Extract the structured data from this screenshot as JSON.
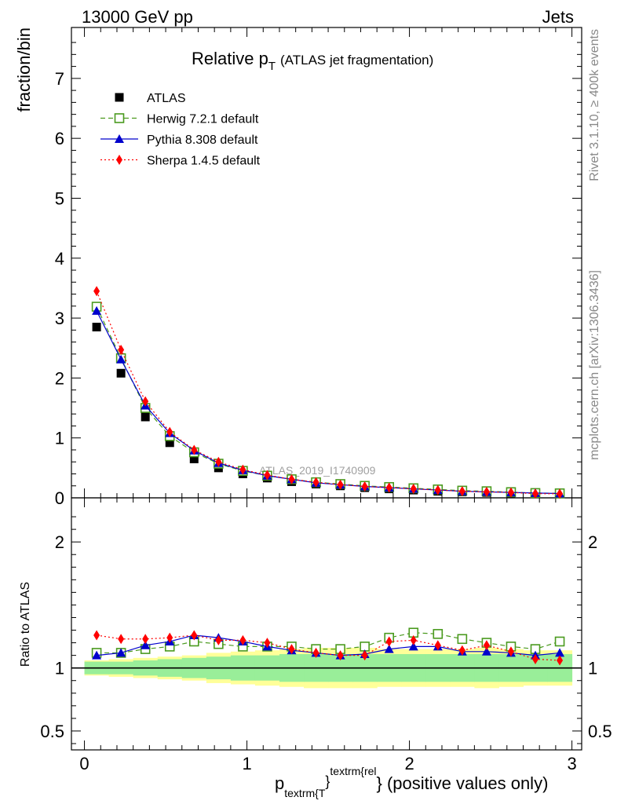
{
  "chart_data": {
    "type": "scatter",
    "header_left": "13000 GeV pp",
    "header_right": "Jets",
    "title": "Relative p",
    "title_sub": "T",
    "title_suffix": "(ATLAS jet fragmentation)",
    "ylabel_main": "fraction/bin",
    "ylabel_ratio": "Ratio to ATLAS",
    "xlabel_p": "p",
    "xlabel_sub": "textrm{T",
    "xlabel_sup": "textrm{rel",
    "xlabel_brace": "}",
    "xlabel_rest": "} (positive values only)",
    "watermark": "ATLAS_2019_I1740909",
    "side_rivet": "Rivet 3.1.10, ≥ 400k events",
    "side_mcplots": "mcplots.cern.ch [arXiv:1306.3436]",
    "xlim": [
      -0.08,
      3.06
    ],
    "ylim_main": [
      0,
      7.85
    ],
    "ylim_ratio": [
      0.35,
      2.35
    ],
    "x_ticks": [
      {
        "v": 0,
        "label": "0"
      },
      {
        "v": 1,
        "label": "1"
      },
      {
        "v": 2,
        "label": "2"
      },
      {
        "v": 3,
        "label": "3"
      }
    ],
    "y_ticks_main": [
      {
        "v": 0,
        "label": "0"
      },
      {
        "v": 1,
        "label": "1"
      },
      {
        "v": 2,
        "label": "2"
      },
      {
        "v": 3,
        "label": "3"
      },
      {
        "v": 4,
        "label": "4"
      },
      {
        "v": 5,
        "label": "5"
      },
      {
        "v": 6,
        "label": "6"
      },
      {
        "v": 7,
        "label": "7"
      }
    ],
    "y_ticks_ratio": [
      {
        "v": 0.5,
        "label": "0.5"
      },
      {
        "v": 1,
        "label": "1"
      },
      {
        "v": 2,
        "label": "2"
      }
    ],
    "x": [
      0.075,
      0.225,
      0.375,
      0.525,
      0.675,
      0.825,
      0.975,
      1.125,
      1.275,
      1.425,
      1.575,
      1.725,
      1.875,
      2.025,
      2.175,
      2.325,
      2.475,
      2.625,
      2.775,
      2.925
    ],
    "bin_edges": [
      0,
      0.15,
      0.3,
      0.45,
      0.6,
      0.75,
      0.9,
      1.05,
      1.2,
      1.35,
      1.5,
      1.65,
      1.8,
      1.95,
      2.1,
      2.25,
      2.4,
      2.55,
      2.7,
      2.85,
      3.0
    ],
    "band_green_low": [
      0.95,
      0.95,
      0.94,
      0.93,
      0.92,
      0.91,
      0.9,
      0.9,
      0.89,
      0.89,
      0.89,
      0.89,
      0.89,
      0.89,
      0.89,
      0.89,
      0.89,
      0.89,
      0.89,
      0.89
    ],
    "band_green_high": [
      1.05,
      1.05,
      1.06,
      1.07,
      1.08,
      1.09,
      1.1,
      1.1,
      1.11,
      1.11,
      1.11,
      1.11,
      1.11,
      1.11,
      1.11,
      1.11,
      1.11,
      1.11,
      1.11,
      1.11
    ],
    "band_yellow_low": [
      0.94,
      0.93,
      0.92,
      0.91,
      0.9,
      0.88,
      0.87,
      0.86,
      0.85,
      0.84,
      0.84,
      0.84,
      0.85,
      0.85,
      0.85,
      0.85,
      0.84,
      0.85,
      0.86,
      0.86
    ],
    "band_yellow_high": [
      1.06,
      1.07,
      1.08,
      1.09,
      1.1,
      1.12,
      1.13,
      1.14,
      1.15,
      1.16,
      1.16,
      1.16,
      1.15,
      1.15,
      1.15,
      1.15,
      1.16,
      1.15,
      1.14,
      1.14
    ],
    "series": [
      {
        "name": "ATLAS",
        "color": "#000000",
        "marker": "square-filled",
        "line": "none",
        "values": [
          2.85,
          2.08,
          1.35,
          0.92,
          0.65,
          0.5,
          0.4,
          0.33,
          0.27,
          0.23,
          0.2,
          0.17,
          0.15,
          0.13,
          0.11,
          0.1,
          0.09,
          0.08,
          0.07,
          0.065
        ]
      },
      {
        "name": "Herwig 7.2.1 default",
        "color": "#4a9a1e",
        "marker": "square-open",
        "line": "dashed",
        "values": [
          3.19,
          2.33,
          1.5,
          1.03,
          0.76,
          0.57,
          0.45,
          0.37,
          0.31,
          0.26,
          0.23,
          0.2,
          0.18,
          0.16,
          0.14,
          0.12,
          0.11,
          0.095,
          0.08,
          0.075
        ],
        "ratio": [
          1.12,
          1.12,
          1.15,
          1.17,
          1.21,
          1.19,
          1.17,
          1.17,
          1.17,
          1.15,
          1.15,
          1.17,
          1.24,
          1.28,
          1.27,
          1.23,
          1.2,
          1.17,
          1.15,
          1.21
        ]
      },
      {
        "name": "Pythia 8.308 default",
        "color": "#0000cc",
        "marker": "triangle-filled",
        "line": "solid",
        "values": [
          3.12,
          2.31,
          1.54,
          1.08,
          0.79,
          0.58,
          0.46,
          0.37,
          0.31,
          0.25,
          0.22,
          0.19,
          0.17,
          0.15,
          0.13,
          0.11,
          0.1,
          0.09,
          0.08,
          0.072
        ],
        "ratio": [
          1.1,
          1.12,
          1.18,
          1.21,
          1.26,
          1.24,
          1.21,
          1.17,
          1.14,
          1.12,
          1.1,
          1.11,
          1.15,
          1.17,
          1.17,
          1.13,
          1.13,
          1.12,
          1.1,
          1.12
        ]
      },
      {
        "name": "Sherpa 1.4.5 default",
        "color": "#ff0000",
        "marker": "diamond-filled",
        "line": "dotted",
        "values": [
          3.45,
          2.47,
          1.61,
          1.1,
          0.8,
          0.6,
          0.47,
          0.38,
          0.31,
          0.26,
          0.22,
          0.19,
          0.17,
          0.15,
          0.13,
          0.11,
          0.1,
          0.09,
          0.07,
          0.068
        ],
        "ratio": [
          1.26,
          1.23,
          1.23,
          1.24,
          1.26,
          1.22,
          1.22,
          1.2,
          1.15,
          1.12,
          1.1,
          1.1,
          1.21,
          1.22,
          1.18,
          1.14,
          1.18,
          1.13,
          1.07,
          1.06
        ]
      }
    ]
  }
}
